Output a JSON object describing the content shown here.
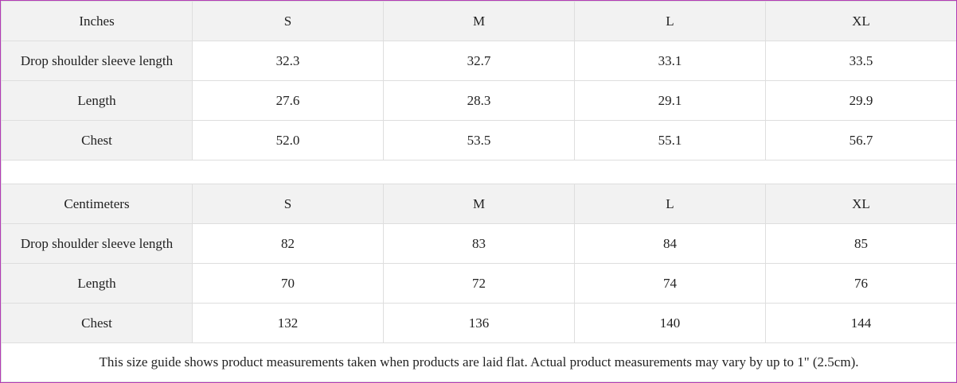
{
  "inches": {
    "header": [
      "Inches",
      "S",
      "M",
      "L",
      "XL"
    ],
    "rows": [
      {
        "label": "Drop shoulder sleeve length",
        "values": [
          "32.3",
          "32.7",
          "33.1",
          "33.5"
        ]
      },
      {
        "label": "Length",
        "values": [
          "27.6",
          "28.3",
          "29.1",
          "29.9"
        ]
      },
      {
        "label": "Chest",
        "values": [
          "52.0",
          "53.5",
          "55.1",
          "56.7"
        ]
      }
    ]
  },
  "centimeters": {
    "header": [
      "Centimeters",
      "S",
      "M",
      "L",
      "XL"
    ],
    "rows": [
      {
        "label": "Drop shoulder sleeve length",
        "values": [
          "82",
          "83",
          "84",
          "85"
        ]
      },
      {
        "label": "Length",
        "values": [
          "70",
          "72",
          "74",
          "76"
        ]
      },
      {
        "label": "Chest",
        "values": [
          "132",
          "136",
          "140",
          "144"
        ]
      }
    ]
  },
  "note": "This size guide shows product measurements taken when products are laid flat.  Actual product measurements may vary by up to 1\" (2.5cm).",
  "colors": {
    "border_accent": "#b23bb5",
    "header_bg": "#f2f2f2",
    "grid_line": "#dedede"
  }
}
